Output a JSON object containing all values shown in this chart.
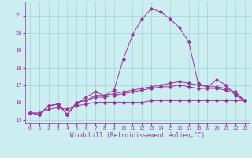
{
  "bg_color": "#cceef0",
  "grid_color": "#aad8dc",
  "line_color": "#993399",
  "xlabel": "Windchill (Refroidissement éolien,°C)",
  "xlim": [
    -0.5,
    23.5
  ],
  "ylim": [
    14.8,
    21.8
  ],
  "yticks": [
    15,
    16,
    17,
    18,
    19,
    20,
    21
  ],
  "xticks": [
    0,
    1,
    2,
    3,
    4,
    5,
    6,
    7,
    8,
    9,
    10,
    11,
    12,
    13,
    14,
    15,
    16,
    17,
    18,
    19,
    20,
    21,
    22,
    23
  ],
  "x": [
    0,
    1,
    2,
    3,
    4,
    5,
    6,
    7,
    8,
    9,
    10,
    11,
    12,
    13,
    14,
    15,
    16,
    17,
    18,
    19,
    20,
    21,
    22,
    23
  ],
  "line1": [
    15.4,
    15.3,
    15.8,
    15.9,
    15.3,
    15.9,
    16.3,
    16.6,
    16.4,
    16.7,
    18.5,
    19.9,
    20.8,
    21.4,
    21.2,
    20.8,
    20.3,
    19.5,
    17.1,
    16.9,
    17.3,
    17.0,
    16.4,
    16.1
  ],
  "line2": [
    15.4,
    15.3,
    15.8,
    15.9,
    15.3,
    16.0,
    16.1,
    16.4,
    16.4,
    16.5,
    16.6,
    16.7,
    16.8,
    16.9,
    17.0,
    17.1,
    17.2,
    17.1,
    17.0,
    16.9,
    16.9,
    16.8,
    16.6,
    16.1
  ],
  "line3": [
    15.4,
    15.3,
    15.8,
    15.9,
    15.3,
    16.0,
    16.1,
    16.3,
    16.3,
    16.4,
    16.5,
    16.6,
    16.7,
    16.8,
    16.9,
    16.9,
    17.0,
    16.9,
    16.8,
    16.8,
    16.8,
    16.7,
    16.5,
    16.1
  ],
  "line4": [
    15.4,
    15.4,
    15.6,
    15.7,
    15.6,
    15.8,
    15.9,
    16.0,
    16.0,
    16.0,
    16.0,
    16.0,
    16.0,
    16.1,
    16.1,
    16.1,
    16.1,
    16.1,
    16.1,
    16.1,
    16.1,
    16.1,
    16.1,
    16.1
  ]
}
